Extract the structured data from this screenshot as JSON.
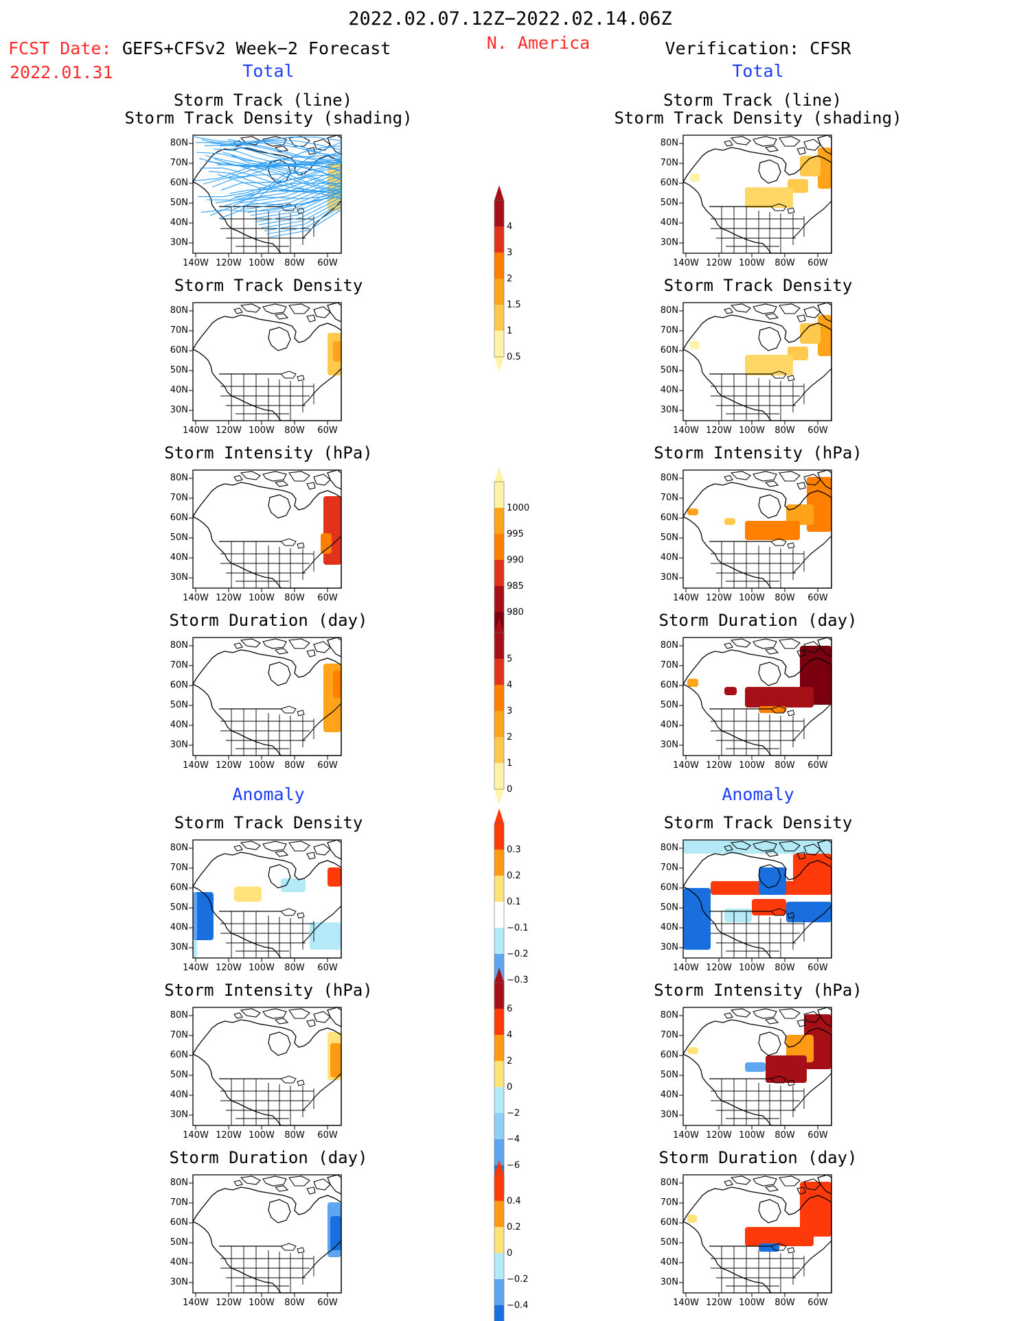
{
  "header": {
    "date_range": "2022.02.07.12Z−2022.02.14.06Z",
    "region": "N. America",
    "fcst_label": "FCST Date:",
    "fcst_date": "2022.01.31",
    "model": "GEFS+CFSv2 Week−2 Forecast",
    "verification": "Verification: CFSR"
  },
  "sections": {
    "total": "Total",
    "anomaly": "Anomaly"
  },
  "map_axes": {
    "lat_ticks": [
      "80N",
      "70N",
      "60N",
      "50N",
      "40N",
      "30N"
    ],
    "lon_ticks": [
      "140W",
      "120W",
      "100W",
      "80W",
      "60W"
    ]
  },
  "left_panels": [
    {
      "title_1": "Storm Track (line)",
      "title_2": "Storm Track Density (shading)"
    },
    {
      "title_1": "Storm Track Density"
    },
    {
      "title_1": "Storm Intensity (hPa)"
    },
    {
      "title_1": "Storm Duration (day)"
    },
    {
      "title_1": "Storm Track Density"
    },
    {
      "title_1": "Storm Intensity (hPa)"
    },
    {
      "title_1": "Storm Duration (day)"
    }
  ],
  "right_panels": [
    {
      "title_1": "Storm Track (line)",
      "title_2": "Storm Track Density (shading)"
    },
    {
      "title_1": "Storm Track Density"
    },
    {
      "title_1": "Storm Intensity (hPa)"
    },
    {
      "title_1": "Storm Duration (day)"
    },
    {
      "title_1": "Storm Track Density"
    },
    {
      "title_1": "Storm Intensity (hPa)"
    },
    {
      "title_1": "Storm Duration (day)"
    }
  ],
  "colorbars": [
    {
      "name": "track-density-colorbar",
      "labels": [
        "4",
        "3",
        "2",
        "1.5",
        "1",
        "0.5"
      ],
      "colors": [
        "#a50f15",
        "#e3321b",
        "#ff7f00",
        "#ffa31a",
        "#ffc94d",
        "#fff3a8"
      ]
    },
    {
      "name": "intensity-colorbar",
      "labels": [
        "1000",
        "995",
        "990",
        "985",
        "980"
      ],
      "colors": [
        "#fff3a8",
        "#ffa31a",
        "#ff7f00",
        "#e3321b",
        "#a50f15",
        "#7a0010"
      ]
    },
    {
      "name": "duration-colorbar",
      "labels": [
        "5",
        "4",
        "3",
        "2",
        "1",
        "0"
      ],
      "colors": [
        "#a50f15",
        "#e3321b",
        "#ff7f00",
        "#ffa31a",
        "#ffc94d",
        "#fff3a8"
      ]
    },
    {
      "name": "density-anomaly-colorbar",
      "labels": [
        "0.3",
        "0.2",
        "0.1",
        "−0.1",
        "−0.2",
        "−0.3"
      ],
      "colors": [
        "#ff3a0a",
        "#ff9a14",
        "#ffe27a",
        "#ffffff",
        "#b4eaf7",
        "#5fa6f0",
        "#1a6fdf"
      ]
    },
    {
      "name": "intensity-anomaly-colorbar",
      "labels": [
        "6",
        "4",
        "2",
        "0",
        "−2",
        "−4",
        "−6"
      ],
      "colors": [
        "#a50f15",
        "#ff3a0a",
        "#ff9a14",
        "#ffe27a",
        "#b4eaf7",
        "#8fd0f5",
        "#5fa6f0",
        "#1a6fdf"
      ]
    },
    {
      "name": "duration-anomaly-colorbar",
      "labels": [
        "0.4",
        "0.2",
        "0",
        "−0.2",
        "−0.4"
      ],
      "colors": [
        "#ff3a0a",
        "#ff9a14",
        "#ffe27a",
        "#b4eaf7",
        "#5fa6f0",
        "#1a6fdf"
      ]
    }
  ]
}
